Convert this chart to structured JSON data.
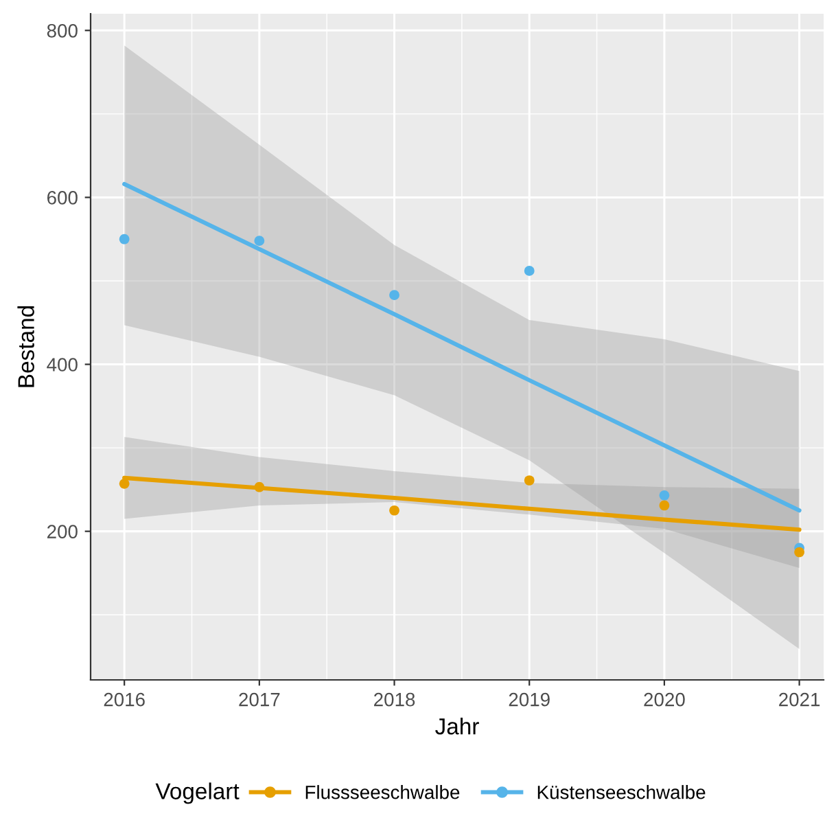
{
  "chart_data": {
    "type": "scatter",
    "xlabel": "Jahr",
    "ylabel": "Bestand",
    "legend_title": "Vogelart",
    "legend": "bottom",
    "grid": true,
    "marker": "circle",
    "xlim": [
      2015.75,
      2021.18
    ],
    "ylim": [
      22,
      820
    ],
    "xticks": [
      2016,
      2017,
      2018,
      2019,
      2020,
      2021
    ],
    "yticks": [
      200,
      400,
      600,
      800
    ],
    "series": [
      {
        "type": "line",
        "marker": "none",
        "color": "#e69f00",
        "x": [
          2016,
          2017,
          2018,
          2019,
          2020,
          2021
        ],
        "values": [
          264,
          252,
          240,
          227,
          214,
          202
        ],
        "lower": [
          215,
          231,
          235,
          220,
          203,
          156
        ],
        "upper": [
          313,
          289,
          272,
          258,
          253,
          251
        ]
      },
      {
        "type": "line",
        "marker": "none",
        "color": "#56b4e9",
        "x": [
          2016,
          2017,
          2018,
          2019,
          2020,
          2021
        ],
        "values": [
          616,
          538,
          460,
          381,
          303,
          225
        ],
        "lower": [
          447,
          409,
          363,
          285,
          174,
          59
        ],
        "upper": [
          782,
          663,
          543,
          453,
          430,
          392
        ]
      },
      {
        "name": "Flussseeschwalbe",
        "color": "#e69f00",
        "x": [
          2016,
          2017,
          2018,
          2019,
          2020,
          2021
        ],
        "values": [
          257,
          253,
          225,
          261,
          231,
          175
        ]
      },
      {
        "name": "Küstenseeschwalbe",
        "color": "#56b4e9",
        "x": [
          2016,
          2017,
          2018,
          2019,
          2020,
          2021
        ],
        "values": [
          550,
          548,
          483,
          512,
          243,
          180
        ]
      }
    ]
  }
}
